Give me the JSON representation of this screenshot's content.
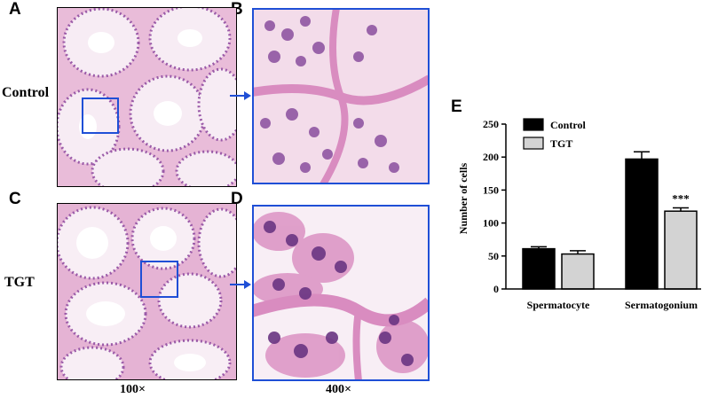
{
  "panels": {
    "a_letter": "A",
    "b_letter": "B",
    "c_letter": "C",
    "d_letter": "D",
    "e_letter": "E",
    "row_top_label": "Control",
    "row_bottom_label": "TGT",
    "mag_low": "100×",
    "mag_high": "400×"
  },
  "colors": {
    "tissue_pink": "#e7b6d6",
    "tissue_light": "#f6e7f1",
    "nucleus_purple": "#8a4f9e",
    "nucleus_dark": "#5b2d72",
    "box_blue": "#1f4fd6",
    "bar_control": "#000000",
    "bar_tgt": "#d3d3d3"
  },
  "chart_data": {
    "type": "bar",
    "title": "",
    "xlabel": "",
    "ylabel": "Number of cells",
    "ylim": [
      0,
      250
    ],
    "yticks": [
      0,
      50,
      100,
      150,
      200,
      250
    ],
    "categories": [
      "Spermatocyte",
      "Sermatogonium"
    ],
    "series": [
      {
        "name": "Control",
        "values": [
          61,
          197
        ],
        "errors": [
          3,
          11
        ],
        "color": "#000000"
      },
      {
        "name": "TGT",
        "values": [
          53,
          118
        ],
        "errors": [
          5,
          5
        ],
        "color": "#d3d3d3"
      }
    ],
    "annotations": [
      {
        "text": "***",
        "category": "Sermatogonium",
        "series": "TGT"
      }
    ],
    "legend": "top-left"
  }
}
